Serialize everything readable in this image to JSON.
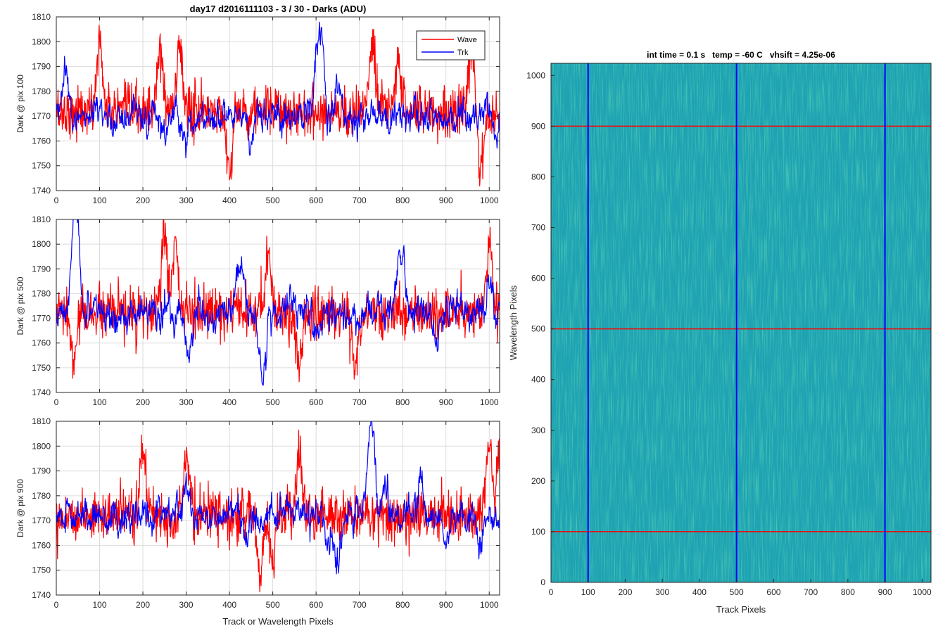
{
  "colors": {
    "wave": "#ff0000",
    "trk": "#0000ff",
    "grid": "#dcdcdc",
    "axis": "#262626"
  },
  "chart_data": [
    {
      "type": "line",
      "title": "day17 d2016111103 - 3 / 30 - Darks (ADU)",
      "xlabel": "",
      "ylabel": "Dark @ pix 100",
      "xlim": [
        0,
        1024
      ],
      "ylim": [
        1740,
        1810
      ],
      "xticks": [
        "0",
        "100",
        "200",
        "300",
        "400",
        "500",
        "600",
        "700",
        "800",
        "900",
        "1000"
      ],
      "yticks": [
        "1740",
        "1750",
        "1760",
        "1770",
        "1780",
        "1790",
        "1800",
        "1810"
      ],
      "grid": true,
      "legend": {
        "placement": "top-right",
        "entries": [
          "Wave",
          "Trk"
        ]
      },
      "series": [
        {
          "name": "Wave",
          "color": "#ff0000",
          "base": 1772,
          "noise": 5,
          "points": [
            [
              100,
              1801
            ],
            [
              240,
              1796
            ],
            [
              285,
              1800
            ],
            [
              400,
              1748
            ],
            [
              730,
              1800
            ],
            [
              790,
              1795
            ],
            [
              960,
              1799
            ],
            [
              980,
              1746
            ]
          ]
        },
        {
          "name": "Trk",
          "color": "#0000ff",
          "base": 1770,
          "noise": 5,
          "points": [
            [
              20,
              1788
            ],
            [
              250,
              1760
            ],
            [
              300,
              1760
            ],
            [
              380,
              1768
            ],
            [
              450,
              1760
            ],
            [
              600,
              1790
            ],
            [
              612,
              1803
            ],
            [
              650,
              1782
            ],
            [
              740,
              1770
            ],
            [
              1000,
              1778
            ],
            [
              1015,
              1758
            ]
          ]
        }
      ]
    },
    {
      "type": "line",
      "title": "",
      "xlabel": "",
      "ylabel": "Dark @ pix 500",
      "xlim": [
        0,
        1024
      ],
      "ylim": [
        1740,
        1810
      ],
      "xticks": [
        "0",
        "100",
        "200",
        "300",
        "400",
        "500",
        "600",
        "700",
        "800",
        "900",
        "1000"
      ],
      "yticks": [
        "1740",
        "1750",
        "1760",
        "1770",
        "1780",
        "1790",
        "1800",
        "1810"
      ],
      "grid": true,
      "series": [
        {
          "name": "Wave",
          "color": "#ff0000",
          "base": 1772,
          "noise": 5,
          "points": [
            [
              40,
              1752
            ],
            [
              250,
              1806
            ],
            [
              275,
              1800
            ],
            [
              490,
              1798
            ],
            [
              560,
              1749
            ],
            [
              690,
              1749
            ],
            [
              1000,
              1802
            ]
          ]
        },
        {
          "name": "Trk",
          "color": "#0000ff",
          "base": 1772,
          "noise": 5,
          "points": [
            [
              40,
              1800
            ],
            [
              48,
              1803
            ],
            [
              120,
              1772
            ],
            [
              300,
              1764
            ],
            [
              310,
              1760
            ],
            [
              420,
              1782
            ],
            [
              430,
              1790
            ],
            [
              470,
              1760
            ],
            [
              480,
              1752
            ],
            [
              540,
              1778
            ],
            [
              600,
              1762
            ],
            [
              700,
              1765
            ],
            [
              790,
              1786
            ],
            [
              800,
              1792
            ],
            [
              880,
              1760
            ],
            [
              1000,
              1786
            ]
          ]
        }
      ]
    },
    {
      "type": "line",
      "title": "",
      "xlabel": "Track or Wavelength Pixels",
      "ylabel": "Dark @ pix 900",
      "xlim": [
        0,
        1024
      ],
      "ylim": [
        1740,
        1810
      ],
      "xticks": [
        "0",
        "100",
        "200",
        "300",
        "400",
        "500",
        "600",
        "700",
        "800",
        "900",
        "1000"
      ],
      "yticks": [
        "1740",
        "1750",
        "1760",
        "1770",
        "1780",
        "1790",
        "1800",
        "1810"
      ],
      "grid": true,
      "series": [
        {
          "name": "Wave",
          "color": "#ff0000",
          "base": 1772,
          "noise": 5,
          "points": [
            [
              200,
              1800
            ],
            [
              300,
              1796
            ],
            [
              470,
              1750
            ],
            [
              500,
              1755
            ],
            [
              560,
              1797
            ],
            [
              1000,
              1801
            ],
            [
              1024,
              1798
            ]
          ]
        },
        {
          "name": "Trk",
          "color": "#0000ff",
          "base": 1772,
          "noise": 5,
          "points": [
            [
              220,
              1772
            ],
            [
              300,
              1784
            ],
            [
              440,
              1760
            ],
            [
              630,
              1760
            ],
            [
              650,
              1752
            ],
            [
              720,
              1790
            ],
            [
              730,
              1803
            ],
            [
              760,
              1783
            ],
            [
              840,
              1786
            ],
            [
              900,
              1758
            ],
            [
              980,
              1760
            ]
          ]
        }
      ]
    },
    {
      "type": "heatmap",
      "title": "int time = 0.1 s   temp = -60 C   vhsift = 4.25e-06",
      "xlabel": "Track Pixels",
      "ylabel": "Wavelength Pixels",
      "xlim": [
        0,
        1024
      ],
      "ylim": [
        0,
        1024
      ],
      "xticks": [
        "0",
        "100",
        "200",
        "300",
        "400",
        "500",
        "600",
        "700",
        "800",
        "900",
        "1000"
      ],
      "yticks": [
        "0",
        "100",
        "200",
        "300",
        "400",
        "500",
        "600",
        "700",
        "800",
        "900",
        "1000"
      ],
      "colormap": "parula",
      "fill_color": "#1fa3b3",
      "vertical_lines": {
        "color": "#0000ff",
        "x": [
          100,
          500,
          900
        ]
      },
      "horizontal_lines": {
        "color": "#ff0000",
        "y": [
          100,
          500,
          900
        ]
      }
    }
  ]
}
